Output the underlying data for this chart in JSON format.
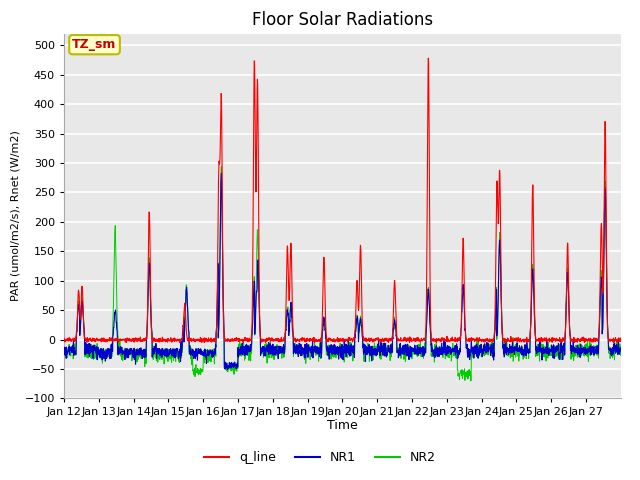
{
  "title": "Floor Solar Radiations",
  "xlabel": "Time",
  "ylabel": "PAR (umol/m2/s), Rnet (W/m2)",
  "ylim": [
    -100,
    520
  ],
  "yticks": [
    -100,
    -50,
    0,
    50,
    100,
    150,
    200,
    250,
    300,
    350,
    400,
    450,
    500
  ],
  "xtick_labels": [
    "Jan 12",
    "Jan 13",
    "Jan 14",
    "Jan 15",
    "Jan 16",
    "Jan 17",
    "Jan 18",
    "Jan 19",
    "Jan 20",
    "Jan 21",
    "Jan 22",
    "Jan 23",
    "Jan 24",
    "Jan 25",
    "Jan 26",
    "Jan 27"
  ],
  "legend_labels": [
    "q_line",
    "NR1",
    "NR2"
  ],
  "line_colors": [
    "#ff0000",
    "#0000cc",
    "#00cc00"
  ],
  "annotation_text": "TZ_sm",
  "annotation_facecolor": "#ffffcc",
  "annotation_edgecolor": "#bbbb00",
  "annotation_textcolor": "#cc0000",
  "bg_color": "#e8e8e8",
  "grid_color": "#ffffff",
  "title_fontsize": 12
}
